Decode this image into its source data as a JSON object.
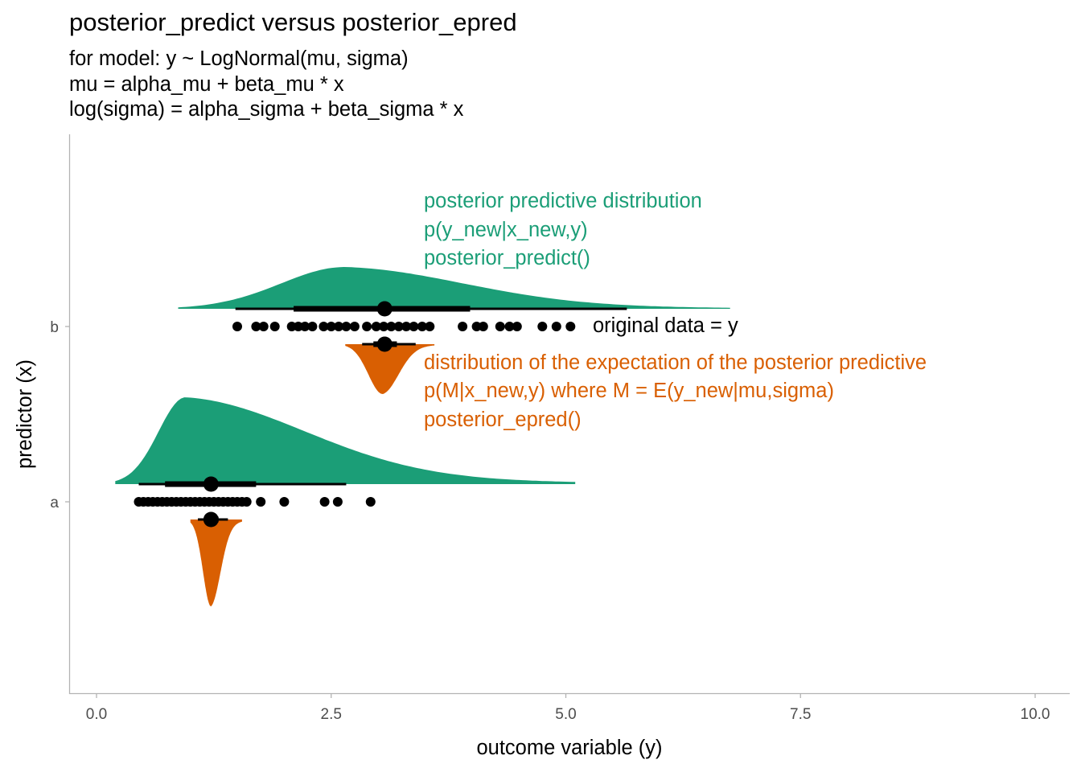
{
  "chart_data": {
    "type": "halfeye",
    "title": "posterior_predict versus posterior_epred",
    "subtitle": [
      "for model: y ~ LogNormal(mu, sigma)",
      "mu = alpha_mu + beta_mu * x",
      "log(sigma) = alpha_sigma + beta_sigma * x"
    ],
    "xlabel": "outcome variable (y)",
    "ylabel": "predictor (x)",
    "xlim": [
      0,
      10
    ],
    "x_ticks": [
      0,
      2.5,
      5,
      7.5,
      10
    ],
    "x_tick_labels": [
      "0.0",
      "2.5",
      "5.0",
      "7.5",
      "10.0"
    ],
    "categories": [
      "a",
      "b"
    ],
    "colors": {
      "predict": "#1b9e77",
      "epred": "#d95f02",
      "points": "#000000"
    },
    "groups": [
      {
        "category": "a",
        "predict": {
          "median": 1.22,
          "interval_66": [
            0.73,
            1.7
          ],
          "interval_95": [
            0.45,
            2.66
          ],
          "density_range": [
            0.2,
            5.1
          ],
          "mode": 0.95
        },
        "epred": {
          "median": 1.22,
          "interval_66": [
            1.15,
            1.3
          ],
          "interval_95": [
            1.08,
            1.4
          ],
          "density_range": [
            1.0,
            1.55
          ],
          "mode": 1.22
        },
        "data": [
          0.45,
          0.5,
          0.55,
          0.6,
          0.65,
          0.7,
          0.75,
          0.8,
          0.85,
          0.9,
          0.95,
          1.0,
          1.05,
          1.1,
          1.15,
          1.2,
          1.25,
          1.3,
          1.35,
          1.4,
          1.45,
          1.5,
          1.55,
          1.6,
          1.75,
          2.0,
          2.43,
          2.57,
          2.92
        ]
      },
      {
        "category": "b",
        "predict": {
          "median": 3.07,
          "interval_66": [
            2.1,
            3.98
          ],
          "interval_95": [
            1.48,
            5.65
          ],
          "density_range": [
            0.87,
            6.75
          ],
          "mode": 2.65
        },
        "epred": {
          "median": 3.07,
          "interval_66": [
            2.95,
            3.2
          ],
          "interval_95": [
            2.83,
            3.4
          ],
          "density_range": [
            2.65,
            3.6
          ],
          "mode": 3.05
        },
        "data": [
          1.5,
          1.7,
          1.78,
          1.9,
          2.08,
          2.15,
          2.22,
          2.3,
          2.42,
          2.5,
          2.58,
          2.66,
          2.75,
          2.88,
          2.98,
          3.06,
          3.14,
          3.22,
          3.3,
          3.38,
          3.47,
          3.55,
          3.9,
          4.05,
          4.12,
          4.3,
          4.4,
          4.48,
          4.75,
          4.9,
          5.05
        ]
      }
    ],
    "annotations": {
      "predict": [
        "posterior predictive distribution",
        "p(y_new|x_new,y)",
        "posterior_predict()"
      ],
      "data": "original data = y",
      "epred": [
        "distribution of the expectation of the posterior predictive",
        "p(M|x_new,y) where M = E(y_new|mu,sigma)",
        "posterior_epred()"
      ]
    }
  }
}
